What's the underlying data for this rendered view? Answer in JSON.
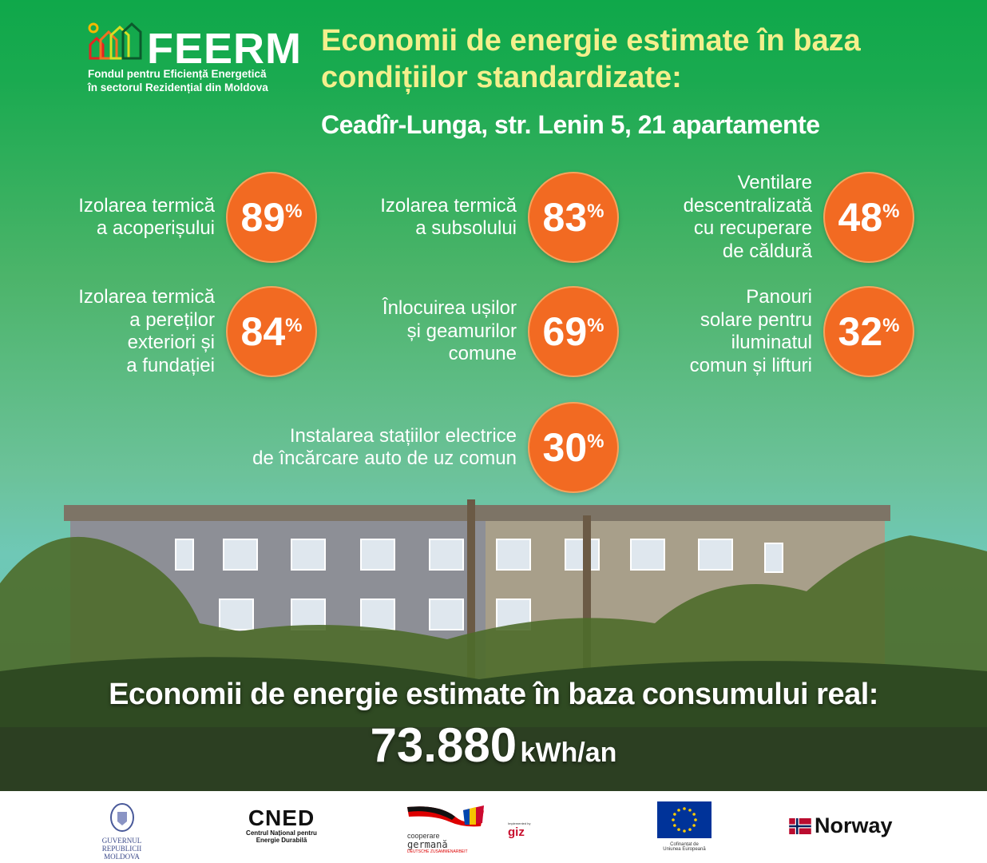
{
  "logo": {
    "name": "FEERM",
    "subtitle_line1": "Fondul pentru Eficiență Energetică",
    "subtitle_line2": "în sectorul Rezidențial din Moldova"
  },
  "title": "Economii de energie estimate în baza condițiilor standardizate:",
  "address": {
    "location": "Ceadîr-Lunga, str. Lenin 5,",
    "apartments": "21 apartamente"
  },
  "measures": [
    {
      "label": [
        "Izolarea termică",
        "a acoperișului"
      ],
      "value": "89",
      "unit": "%"
    },
    {
      "label": [
        "Izolarea termică",
        "a subsolului"
      ],
      "value": "83",
      "unit": "%"
    },
    {
      "label": [
        "Ventilare",
        "descentralizată",
        "cu recuperare",
        "de căldură"
      ],
      "value": "48",
      "unit": "%"
    },
    {
      "label": [
        "Izolarea termică",
        "a pereților",
        "exteriori și",
        "a fundației"
      ],
      "value": "84",
      "unit": "%"
    },
    {
      "label": [
        "Înlocuirea ușilor",
        "și geamurilor",
        "comune"
      ],
      "value": "69",
      "unit": "%"
    },
    {
      "label": [
        "Panouri",
        "solare pentru",
        "iluminatul",
        "comun și lifturi"
      ],
      "value": "32",
      "unit": "%"
    },
    {
      "label": [
        "Instalarea stațiilor electrice",
        "de încărcare auto de uz comun"
      ],
      "value": "30",
      "unit": "%"
    }
  ],
  "real": {
    "title": "Economii de energie estimate în baza consumului real:",
    "value": "73.880",
    "unit": "kWh/an"
  },
  "colors": {
    "accent": "#f26a22",
    "title": "#f4ef8c",
    "green": "#0fa84a"
  },
  "footer": {
    "gov": [
      "GUVERNUL",
      "REPUBLICII MOLDOVA"
    ],
    "cned": {
      "name": "CNED",
      "line1": "Centrul Național pentru",
      "line2": "Energie Durabilă"
    },
    "german": {
      "line1": "cooperare",
      "line2": "germană",
      "line3": "DEUTSCHE ZUSAMMENARBEIT"
    },
    "giz": {
      "impl": "Implemented by",
      "name": "giz"
    },
    "eu": [
      "Cofinanțat de",
      "Uniunea Europeană"
    ],
    "norway": "Norway"
  }
}
